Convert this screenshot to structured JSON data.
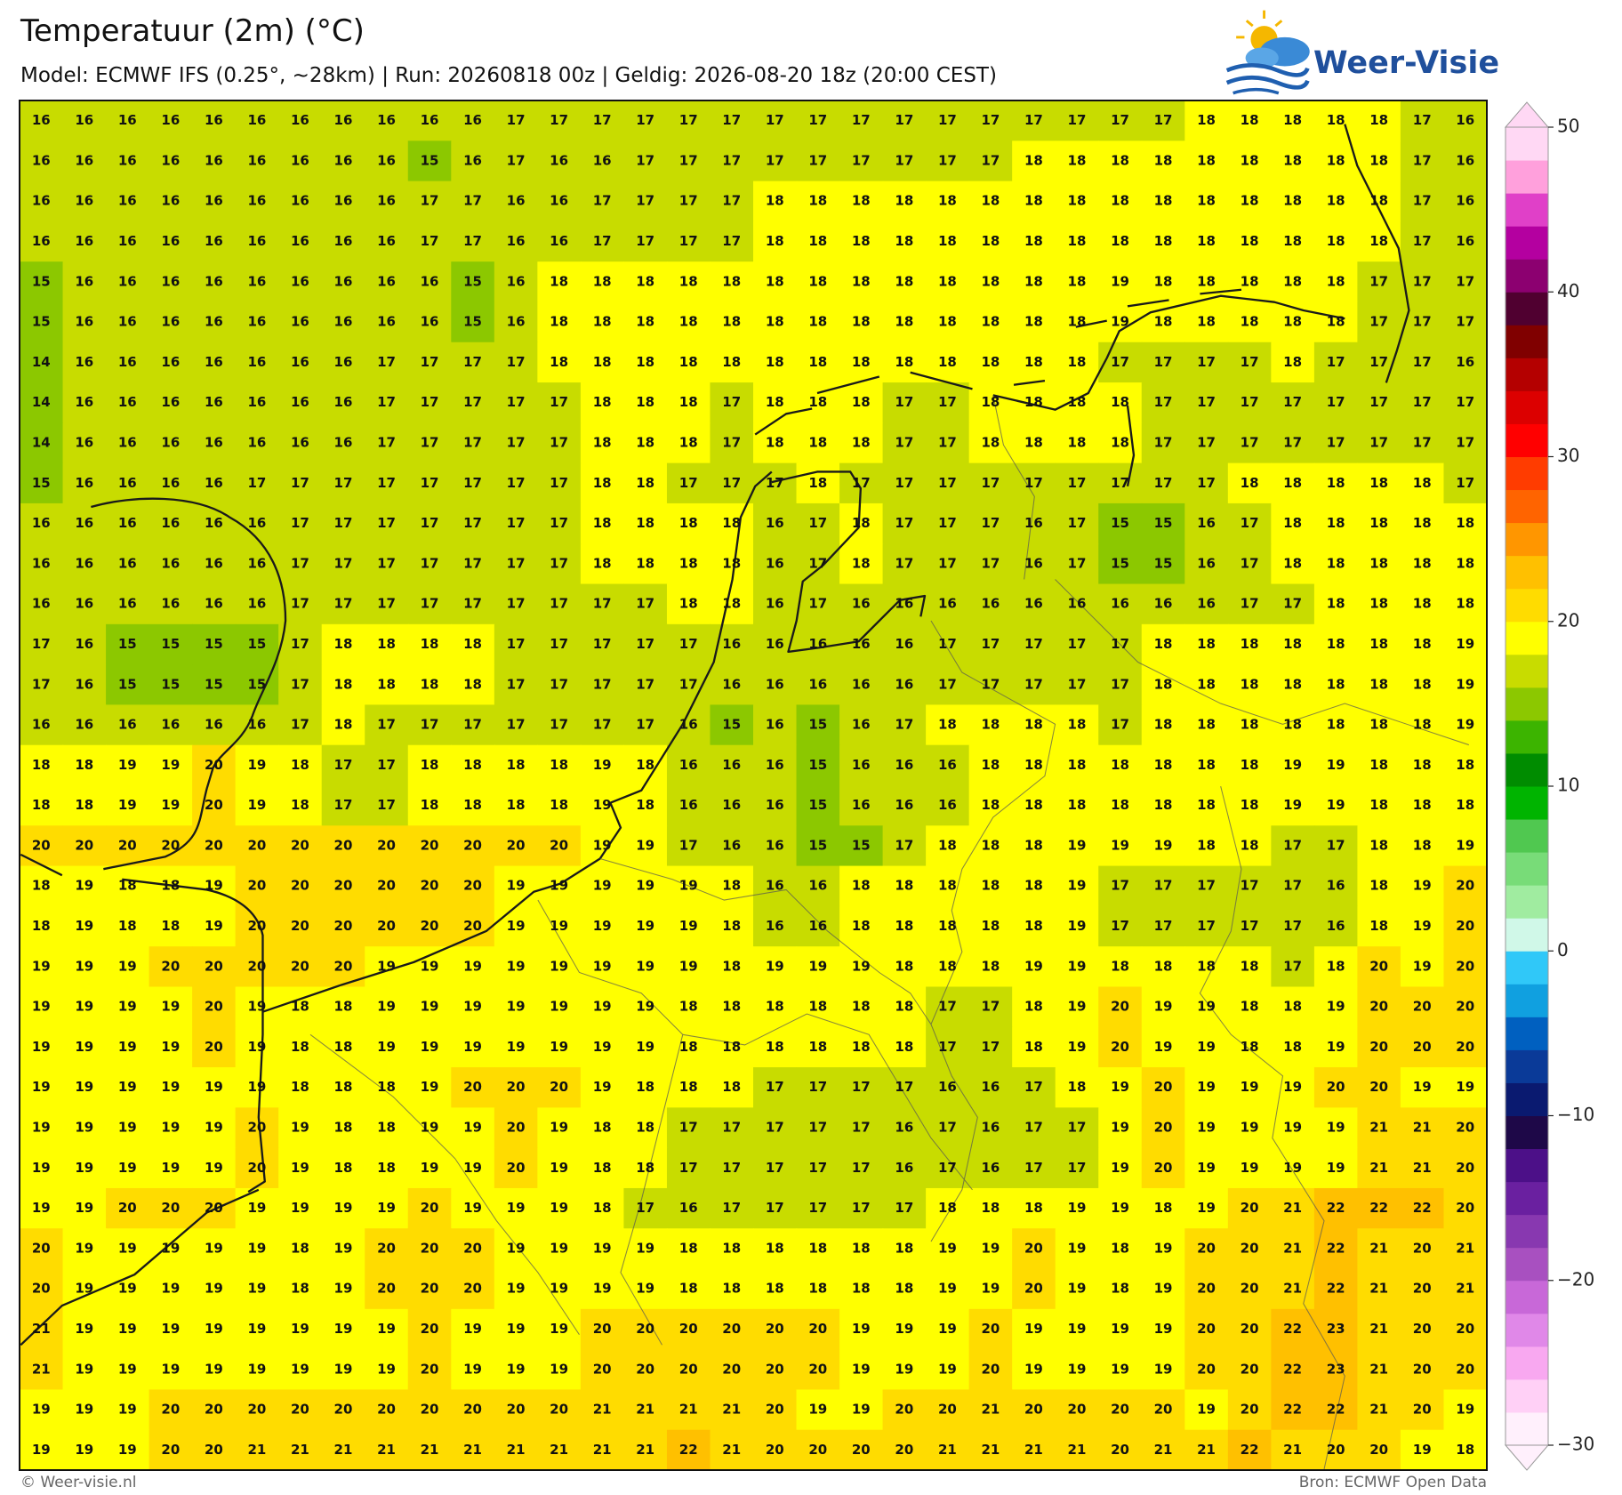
{
  "header": {
    "title": "Temperatuur (2m) (°C)",
    "subtitle": "Model: ECMWF IFS (0.25°, ~28km)  |  Run: 20260818 00z  |  Geldig: 2026-08-20 18z (20:00 CEST)"
  },
  "logo": "Weer-Visie",
  "map": {
    "values": [
      [
        16,
        16,
        16,
        16,
        16,
        16,
        16,
        16,
        16,
        16,
        16,
        17,
        17,
        17,
        17,
        17,
        17,
        17,
        17,
        17,
        17,
        17,
        17,
        17,
        17,
        17,
        17,
        18,
        18,
        18,
        18,
        18,
        17,
        16
      ],
      [
        16,
        16,
        16,
        16,
        16,
        16,
        16,
        16,
        16,
        15,
        16,
        17,
        16,
        16,
        17,
        17,
        17,
        17,
        17,
        17,
        17,
        17,
        17,
        18,
        18,
        18,
        18,
        18,
        18,
        18,
        18,
        18,
        17,
        16
      ],
      [
        16,
        16,
        16,
        16,
        16,
        16,
        16,
        16,
        16,
        17,
        17,
        16,
        16,
        17,
        17,
        17,
        17,
        18,
        18,
        18,
        18,
        18,
        18,
        18,
        18,
        18,
        18,
        18,
        18,
        18,
        18,
        18,
        17,
        16
      ],
      [
        16,
        16,
        16,
        16,
        16,
        16,
        16,
        16,
        16,
        17,
        17,
        16,
        16,
        17,
        17,
        17,
        17,
        18,
        18,
        18,
        18,
        18,
        18,
        18,
        18,
        18,
        18,
        18,
        18,
        18,
        18,
        18,
        17,
        16
      ],
      [
        15,
        16,
        16,
        16,
        16,
        16,
        16,
        16,
        16,
        16,
        15,
        16,
        18,
        18,
        18,
        18,
        18,
        18,
        18,
        18,
        18,
        18,
        18,
        18,
        18,
        19,
        18,
        18,
        18,
        18,
        18,
        17,
        17,
        17
      ],
      [
        15,
        16,
        16,
        16,
        16,
        16,
        16,
        16,
        16,
        16,
        15,
        16,
        18,
        18,
        18,
        18,
        18,
        18,
        18,
        18,
        18,
        18,
        18,
        18,
        18,
        19,
        18,
        18,
        18,
        18,
        18,
        17,
        17,
        17
      ],
      [
        14,
        16,
        16,
        16,
        16,
        16,
        16,
        16,
        17,
        17,
        17,
        17,
        18,
        18,
        18,
        18,
        18,
        18,
        18,
        18,
        18,
        18,
        18,
        18,
        18,
        17,
        17,
        17,
        17,
        18,
        17,
        17,
        17,
        16
      ],
      [
        14,
        16,
        16,
        16,
        16,
        16,
        16,
        16,
        17,
        17,
        17,
        17,
        17,
        18,
        18,
        18,
        17,
        18,
        18,
        18,
        17,
        17,
        18,
        18,
        18,
        18,
        17,
        17,
        17,
        17,
        17,
        17,
        17,
        17
      ],
      [
        14,
        16,
        16,
        16,
        16,
        16,
        16,
        16,
        17,
        17,
        17,
        17,
        17,
        18,
        18,
        18,
        17,
        18,
        18,
        18,
        17,
        17,
        18,
        18,
        18,
        18,
        17,
        17,
        17,
        17,
        17,
        17,
        17,
        17
      ],
      [
        15,
        16,
        16,
        16,
        16,
        17,
        17,
        17,
        17,
        17,
        17,
        17,
        17,
        18,
        18,
        17,
        17,
        17,
        18,
        17,
        17,
        17,
        17,
        17,
        17,
        17,
        17,
        17,
        18,
        18,
        18,
        18,
        18,
        17
      ],
      [
        16,
        16,
        16,
        16,
        16,
        16,
        17,
        17,
        17,
        17,
        17,
        17,
        17,
        18,
        18,
        18,
        18,
        16,
        17,
        18,
        17,
        17,
        17,
        16,
        17,
        15,
        15,
        16,
        17,
        18,
        18,
        18,
        18,
        18
      ],
      [
        16,
        16,
        16,
        16,
        16,
        16,
        17,
        17,
        17,
        17,
        17,
        17,
        17,
        18,
        18,
        18,
        18,
        16,
        17,
        18,
        17,
        17,
        17,
        16,
        17,
        15,
        15,
        16,
        17,
        18,
        18,
        18,
        18,
        18
      ],
      [
        16,
        16,
        16,
        16,
        16,
        16,
        17,
        17,
        17,
        17,
        17,
        17,
        17,
        17,
        17,
        18,
        18,
        16,
        17,
        16,
        16,
        16,
        16,
        16,
        16,
        16,
        16,
        16,
        17,
        17,
        18,
        18,
        18,
        18
      ],
      [
        17,
        16,
        15,
        15,
        15,
        15,
        17,
        18,
        18,
        18,
        18,
        17,
        17,
        17,
        17,
        17,
        16,
        16,
        16,
        16,
        16,
        17,
        17,
        17,
        17,
        17,
        18,
        18,
        18,
        18,
        18,
        18,
        18,
        19
      ],
      [
        17,
        16,
        15,
        15,
        15,
        15,
        17,
        18,
        18,
        18,
        18,
        17,
        17,
        17,
        17,
        17,
        16,
        16,
        16,
        16,
        16,
        17,
        17,
        17,
        17,
        17,
        18,
        18,
        18,
        18,
        18,
        18,
        18,
        19
      ],
      [
        16,
        16,
        16,
        16,
        16,
        16,
        17,
        18,
        17,
        17,
        17,
        17,
        17,
        17,
        17,
        16,
        15,
        16,
        15,
        16,
        17,
        18,
        18,
        18,
        18,
        17,
        18,
        18,
        18,
        18,
        18,
        18,
        18,
        19
      ],
      [
        18,
        18,
        19,
        19,
        20,
        19,
        18,
        17,
        17,
        18,
        18,
        18,
        18,
        19,
        18,
        16,
        16,
        16,
        15,
        16,
        16,
        16,
        18,
        18,
        18,
        18,
        18,
        18,
        18,
        19,
        19,
        18,
        18,
        18
      ],
      [
        18,
        18,
        19,
        19,
        20,
        19,
        18,
        17,
        17,
        18,
        18,
        18,
        18,
        19,
        18,
        16,
        16,
        16,
        15,
        16,
        16,
        16,
        18,
        18,
        18,
        18,
        18,
        18,
        18,
        19,
        19,
        18,
        18,
        18
      ],
      [
        20,
        20,
        20,
        20,
        20,
        20,
        20,
        20,
        20,
        20,
        20,
        20,
        20,
        19,
        19,
        17,
        16,
        16,
        15,
        15,
        17,
        18,
        18,
        18,
        19,
        19,
        19,
        18,
        18,
        17,
        17,
        18,
        18,
        19
      ],
      [
        18,
        19,
        18,
        18,
        19,
        20,
        20,
        20,
        20,
        20,
        20,
        19,
        19,
        19,
        19,
        19,
        18,
        16,
        16,
        18,
        18,
        18,
        18,
        18,
        19,
        17,
        17,
        17,
        17,
        17,
        16,
        18,
        19,
        20
      ],
      [
        18,
        19,
        18,
        18,
        19,
        20,
        20,
        20,
        20,
        20,
        20,
        19,
        19,
        19,
        19,
        19,
        18,
        16,
        16,
        18,
        18,
        18,
        18,
        18,
        19,
        17,
        17,
        17,
        17,
        17,
        16,
        18,
        19,
        20
      ],
      [
        19,
        19,
        19,
        20,
        20,
        20,
        20,
        20,
        19,
        19,
        19,
        19,
        19,
        19,
        19,
        19,
        18,
        19,
        19,
        19,
        18,
        18,
        18,
        19,
        19,
        18,
        18,
        18,
        18,
        17,
        18,
        20,
        19,
        20
      ],
      [
        19,
        19,
        19,
        19,
        20,
        19,
        18,
        18,
        19,
        19,
        19,
        19,
        19,
        19,
        19,
        18,
        18,
        18,
        18,
        18,
        18,
        17,
        17,
        18,
        19,
        20,
        19,
        19,
        18,
        18,
        19,
        20,
        20,
        20
      ],
      [
        19,
        19,
        19,
        19,
        20,
        19,
        18,
        18,
        19,
        19,
        19,
        19,
        19,
        19,
        19,
        18,
        18,
        18,
        18,
        18,
        18,
        17,
        17,
        18,
        19,
        20,
        19,
        19,
        18,
        18,
        19,
        20,
        20,
        20
      ],
      [
        19,
        19,
        19,
        19,
        19,
        19,
        18,
        18,
        18,
        19,
        20,
        20,
        20,
        19,
        18,
        18,
        18,
        17,
        17,
        17,
        17,
        16,
        16,
        17,
        18,
        19,
        20,
        19,
        19,
        19,
        20,
        20,
        19,
        19
      ],
      [
        19,
        19,
        19,
        19,
        19,
        20,
        19,
        18,
        18,
        19,
        19,
        20,
        19,
        18,
        18,
        17,
        17,
        17,
        17,
        17,
        16,
        17,
        16,
        17,
        17,
        19,
        20,
        19,
        19,
        19,
        19,
        21,
        21,
        20
      ],
      [
        19,
        19,
        19,
        19,
        19,
        20,
        19,
        18,
        18,
        19,
        19,
        20,
        19,
        18,
        18,
        17,
        17,
        17,
        17,
        17,
        16,
        17,
        16,
        17,
        17,
        19,
        20,
        19,
        19,
        19,
        19,
        21,
        21,
        20
      ],
      [
        19,
        19,
        20,
        20,
        20,
        19,
        19,
        19,
        19,
        20,
        19,
        19,
        19,
        18,
        17,
        16,
        17,
        17,
        17,
        17,
        17,
        18,
        18,
        18,
        19,
        19,
        18,
        19,
        20,
        21,
        22,
        22,
        22,
        20
      ],
      [
        20,
        19,
        19,
        19,
        19,
        19,
        18,
        19,
        20,
        20,
        20,
        19,
        19,
        19,
        19,
        18,
        18,
        18,
        18,
        18,
        18,
        19,
        19,
        20,
        19,
        18,
        19,
        20,
        20,
        21,
        22,
        21,
        20,
        21
      ],
      [
        20,
        19,
        19,
        19,
        19,
        19,
        18,
        19,
        20,
        20,
        20,
        19,
        19,
        19,
        19,
        18,
        18,
        18,
        18,
        18,
        18,
        19,
        19,
        20,
        19,
        18,
        19,
        20,
        20,
        21,
        22,
        21,
        20,
        21
      ],
      [
        21,
        19,
        19,
        19,
        19,
        19,
        19,
        19,
        19,
        20,
        19,
        19,
        19,
        20,
        20,
        20,
        20,
        20,
        20,
        19,
        19,
        19,
        20,
        19,
        19,
        19,
        19,
        20,
        20,
        22,
        23,
        21,
        20,
        20
      ],
      [
        21,
        19,
        19,
        19,
        19,
        19,
        19,
        19,
        19,
        20,
        19,
        19,
        19,
        20,
        20,
        20,
        20,
        20,
        20,
        19,
        19,
        19,
        20,
        19,
        19,
        19,
        19,
        20,
        20,
        22,
        23,
        21,
        20,
        20
      ],
      [
        19,
        19,
        19,
        20,
        20,
        20,
        20,
        20,
        20,
        20,
        20,
        20,
        20,
        21,
        21,
        21,
        21,
        20,
        19,
        19,
        20,
        20,
        21,
        20,
        20,
        20,
        20,
        19,
        20,
        22,
        22,
        21,
        20,
        19
      ],
      [
        19,
        19,
        19,
        20,
        20,
        21,
        21,
        21,
        21,
        21,
        21,
        21,
        21,
        21,
        21,
        22,
        21,
        20,
        20,
        20,
        20,
        21,
        21,
        21,
        21,
        20,
        21,
        21,
        22,
        21,
        20,
        20,
        19,
        18
      ]
    ]
  },
  "colorbar": {
    "clim": [
      -30,
      50
    ],
    "colors": [
      "#fff0fc",
      "#ffd0f6",
      "#f8a8f0",
      "#e088e8",
      "#c868d8",
      "#a850c0",
      "#8838b0",
      "#6a20a0",
      "#4c1088",
      "#1e0848",
      "#0a1a70",
      "#0a3a98",
      "#0060c0",
      "#10a0e0",
      "#30c8f8",
      "#d0f8e8",
      "#a0eca0",
      "#78dc78",
      "#50c850",
      "#00b400",
      "#008c00",
      "#3cb400",
      "#8cc800",
      "#c8dc00",
      "#ffff00",
      "#ffdc00",
      "#ffc000",
      "#ff9600",
      "#ff6400",
      "#ff3c00",
      "#ff0000",
      "#dc0000",
      "#b40000",
      "#800000",
      "#500030",
      "#8c0070",
      "#b400a0",
      "#e040c8",
      "#ffa0dc",
      "#ffd8f4"
    ],
    "ticks": [
      50,
      40,
      30,
      20,
      10,
      0,
      {
        "value": -10,
        "label": "−10"
      },
      {
        "value": -20,
        "label": "−20"
      },
      {
        "value": -30,
        "label": "−30"
      }
    ]
  },
  "footer": {
    "credit": "© Weer-visie.nl",
    "source": "Bron: ECMWF Open Data"
  }
}
